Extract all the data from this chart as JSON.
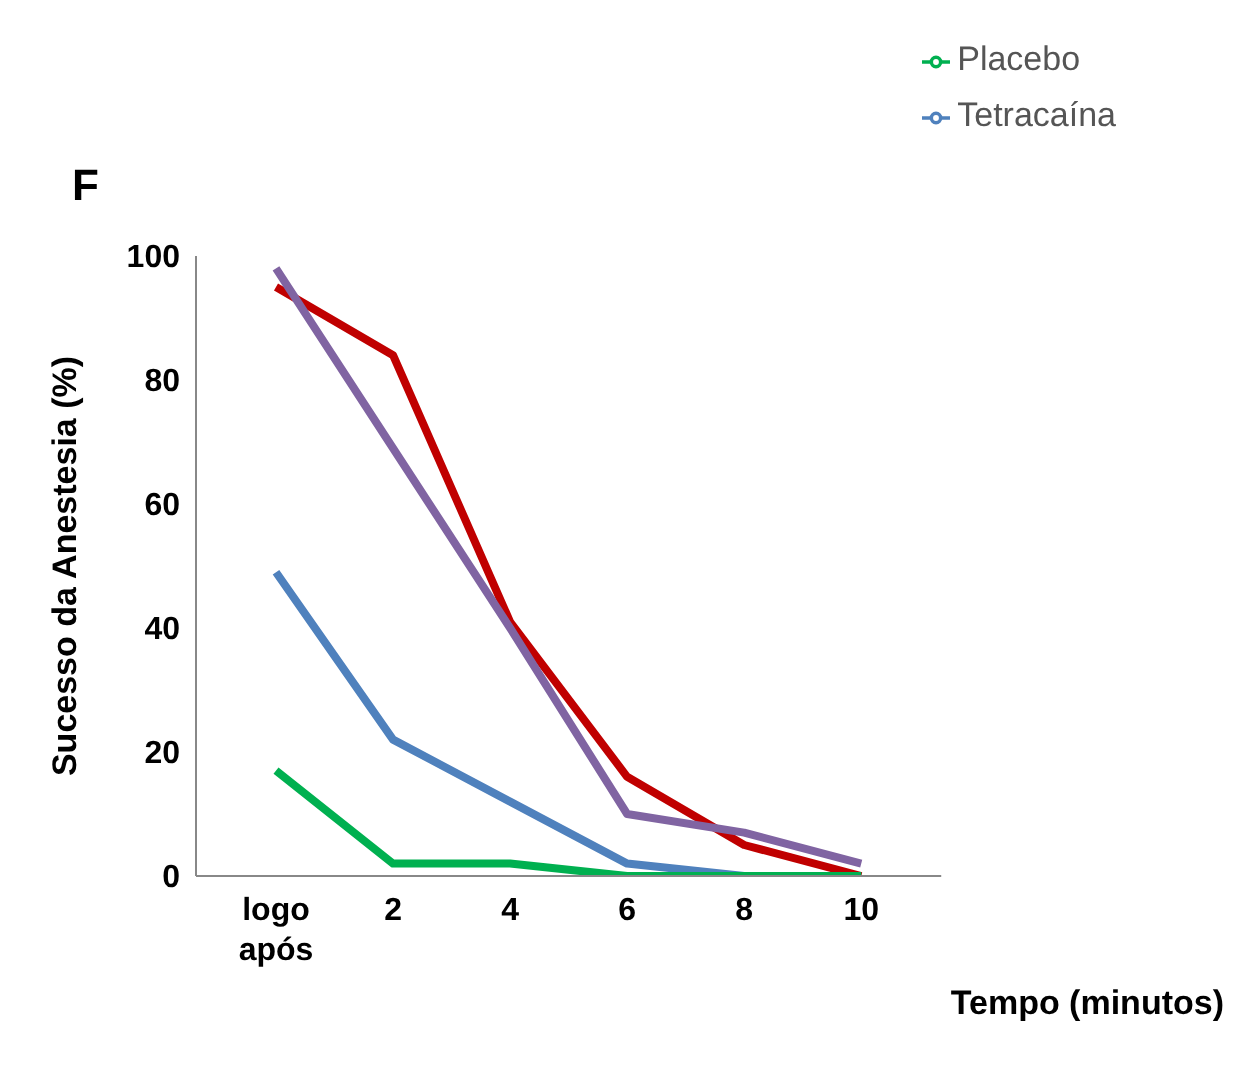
{
  "chart_data": {
    "type": "line",
    "title": "F",
    "xlabel": "Tempo (minutos)",
    "ylabel": "Sucesso da Anestesia (%)",
    "categories": [
      "logo\napós",
      "2",
      "4",
      "6",
      "8",
      "10"
    ],
    "series": [
      {
        "name": "Tetracaína",
        "color": "#4f81bd",
        "values": [
          49,
          22,
          12,
          2,
          0,
          0
        ]
      },
      {
        "color": "#c00000",
        "values": [
          95,
          84,
          41,
          16,
          5,
          0
        ]
      },
      {
        "name": "Placebo",
        "color": "#00b050",
        "values": [
          17,
          2,
          2,
          0,
          0,
          0
        ]
      },
      {
        "color": "#8064a2",
        "values": [
          98,
          69,
          40,
          10,
          7,
          2
        ]
      }
    ],
    "ylim": [
      0,
      100
    ],
    "yticks": [
      0,
      20,
      40,
      60,
      80,
      100
    ],
    "grid": false,
    "legend": "top right",
    "marker": "none",
    "line_style": "solid"
  }
}
